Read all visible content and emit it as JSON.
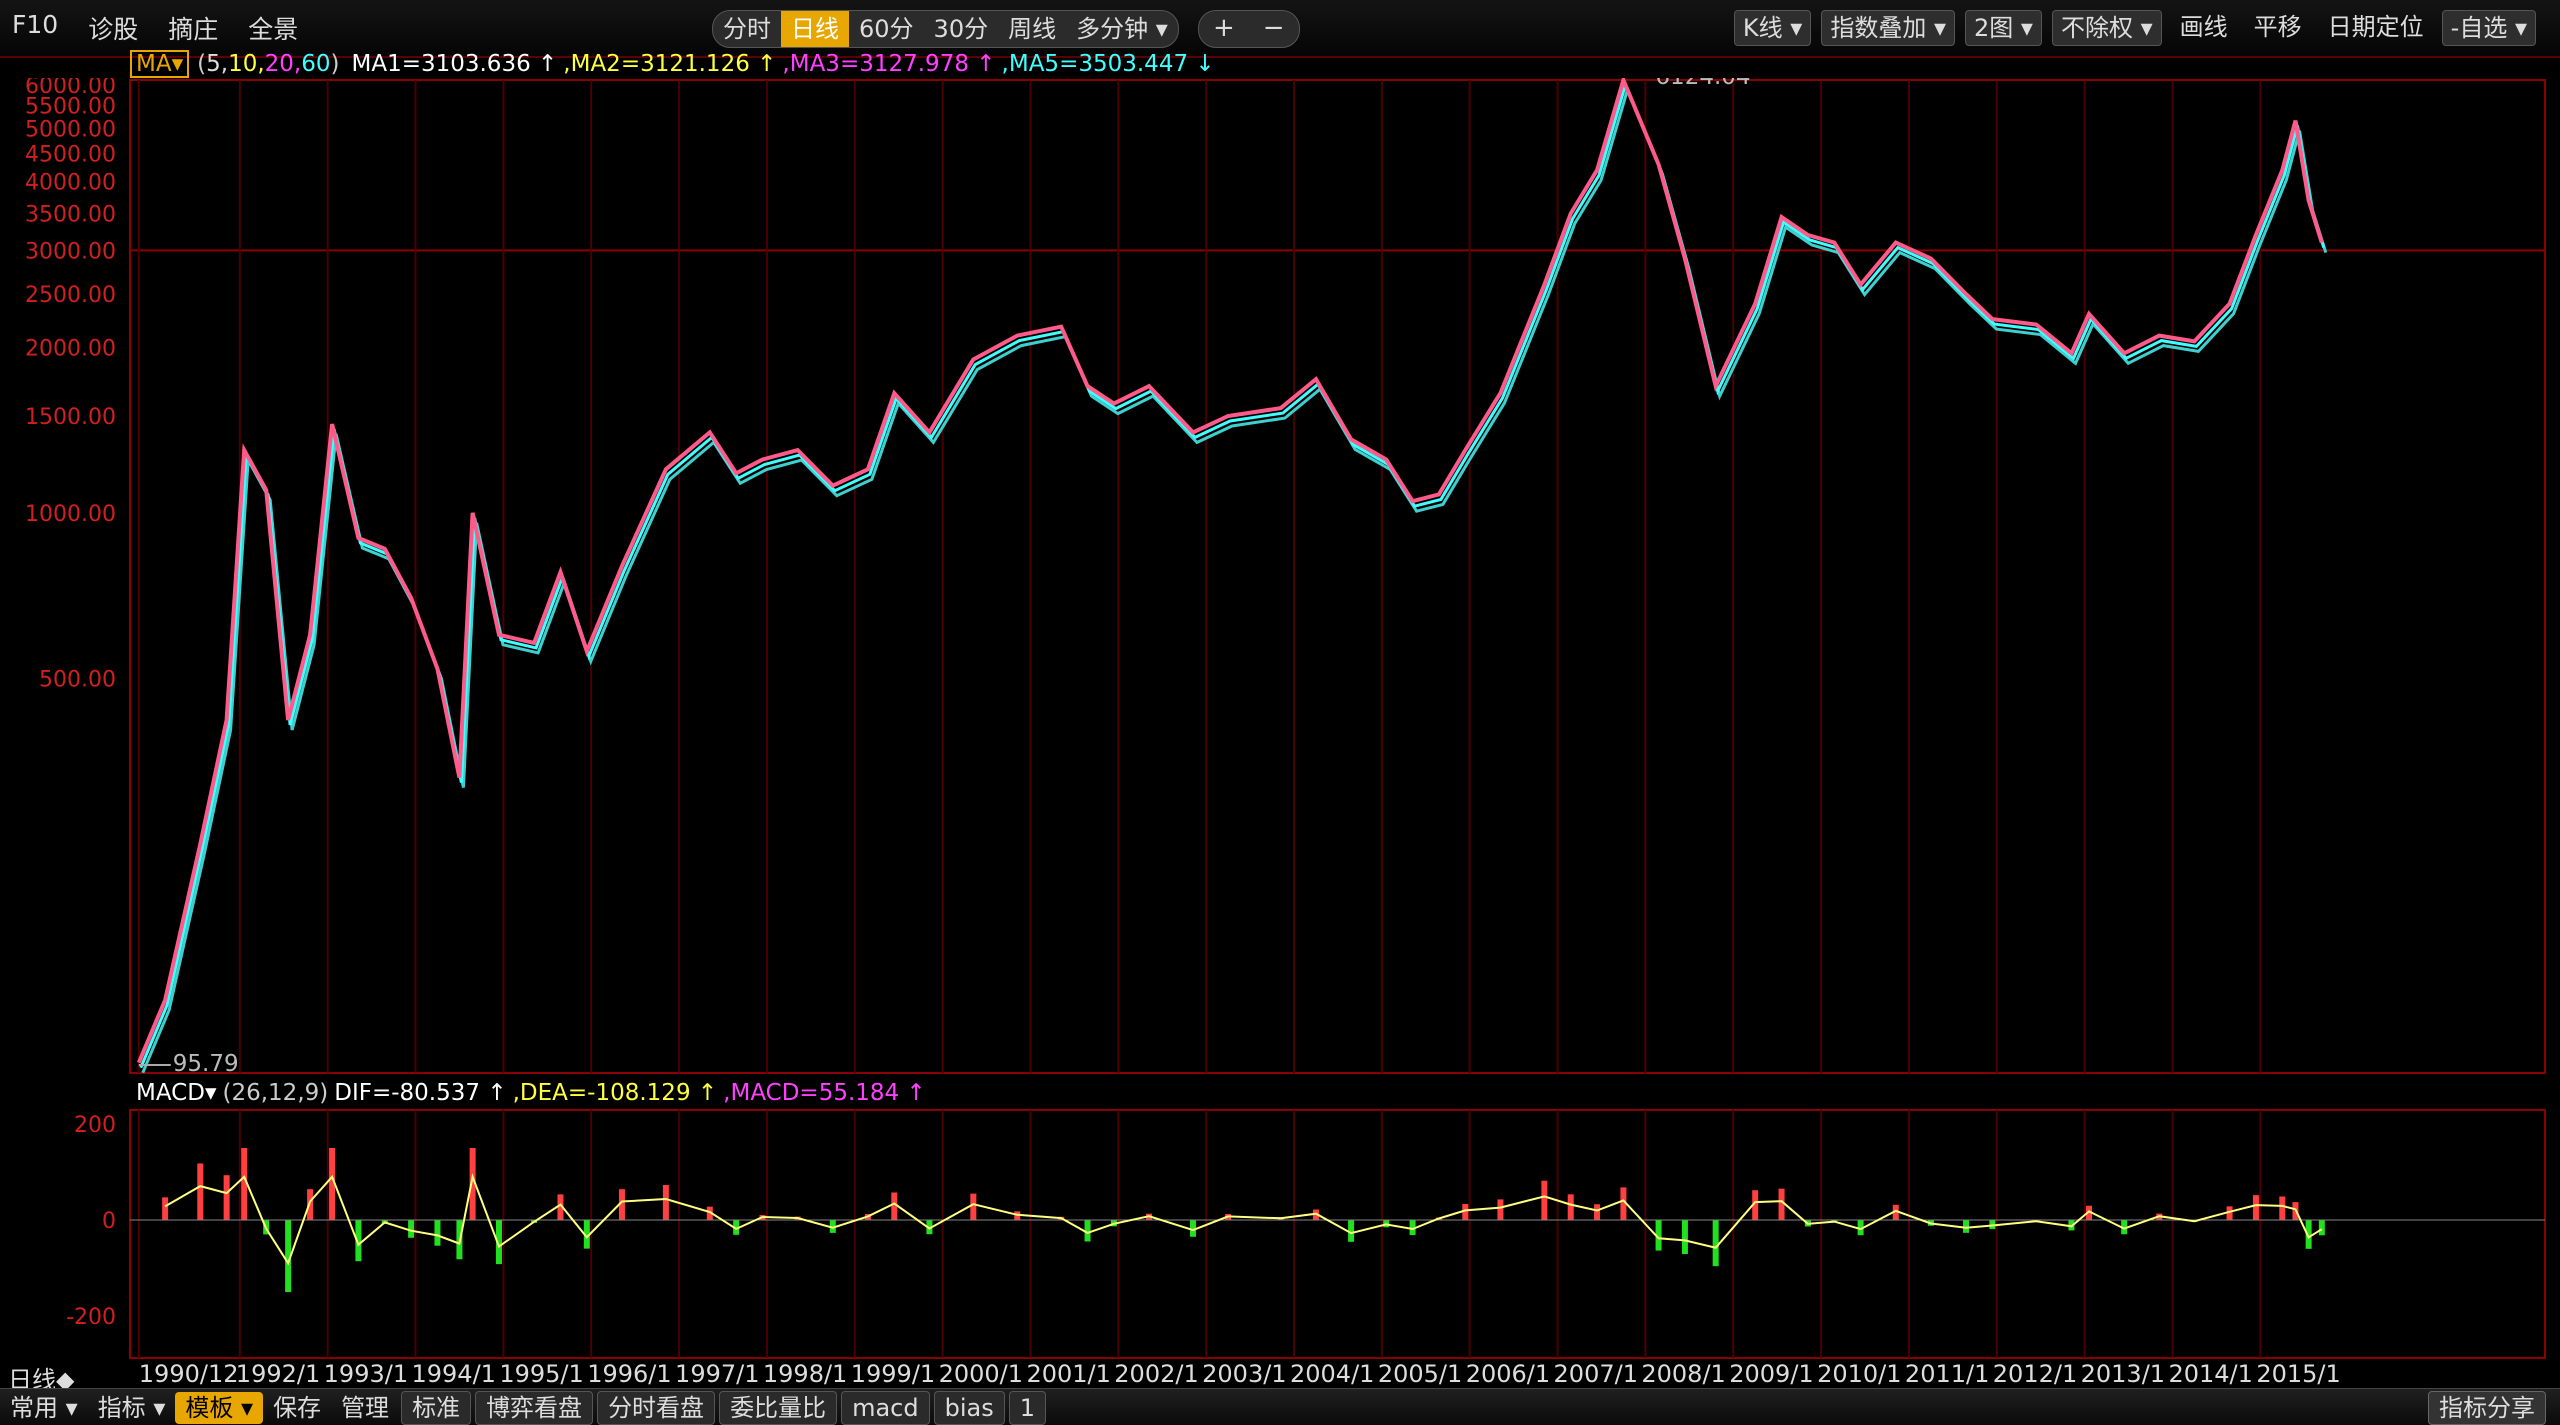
{
  "toolbar": {
    "left_items": [
      "F10",
      "诊股",
      "摘庄",
      "全景"
    ],
    "periods": [
      "分时",
      "日线",
      "60分",
      "30分",
      "周线",
      "多分钟 ▾"
    ],
    "active_period": "日线",
    "zoom_in": "+",
    "zoom_out": "−",
    "right_items": [
      "K线 ▾",
      "指数叠加 ▾",
      "2图 ▾",
      "不除权 ▾",
      "画线",
      "平移",
      "日期定位",
      "-自选 ▾"
    ]
  },
  "ma_legend": {
    "button": "MA▾",
    "params_open": "(",
    "p5": "5,",
    "p10": "10,",
    "p20": "20,",
    "p60": "60",
    "params_close": ")",
    "ma1": "MA1=3103.636 ↑",
    "ma2": ",MA2=3121.126 ↑",
    "ma3": ",MA3=3127.978 ↑",
    "ma5": ",MA5=3503.447 ↓"
  },
  "main_chart": {
    "y_ticks": [
      "6000.00",
      "5500.00",
      "5000.00",
      "4500.00",
      "4000.00",
      "3500.00",
      "3000.00",
      "2500.00",
      "2000.00",
      "1500.00",
      "1000.00",
      "500.00"
    ],
    "max_label": "6124.04",
    "min_label": "95.79"
  },
  "macd_legend": {
    "name": "MACD▾",
    "params": "(26,12,9)",
    "dif": "DIF=-80.537 ↑",
    "dea": ",DEA=-108.129 ↑",
    "macd": ",MACD=55.184 ↑"
  },
  "macd_chart": {
    "y_ticks": [
      "200",
      "0",
      "-200"
    ]
  },
  "x_axis": {
    "prefix": "日线◆",
    "labels": [
      "1990/12",
      "1992/1",
      "1993/1",
      "1994/1",
      "1995/1",
      "1996/1",
      "1997/1",
      "1998/1",
      "1999/1",
      "2000/1",
      "2001/1",
      "2002/1",
      "2003/1",
      "2004/1",
      "2005/1",
      "2006/1",
      "2007/1",
      "2008/1",
      "2009/1",
      "2010/1",
      "2011/1",
      "2012/1",
      "2013/1",
      "2014/1",
      "2015/1"
    ]
  },
  "bottom_bar": {
    "items": [
      "常用 ▾",
      "指标 ▾",
      "模板 ▾",
      "保存",
      "管理"
    ],
    "active": "模板 ▾",
    "tabs": [
      "标准",
      "博弈看盘",
      "分时看盘",
      "委比量比",
      "macd",
      "bias",
      "1"
    ],
    "share": "指标分享"
  },
  "chart_data": {
    "type": "line",
    "title": "",
    "ylabel": "",
    "xlabel": "",
    "log_scale": true,
    "ylim": [
      95.79,
      6124.04
    ],
    "x": [
      1990.9,
      1991.2,
      1991.6,
      1991.9,
      1992.1,
      1992.35,
      1992.6,
      1992.85,
      1993.1,
      1993.4,
      1993.7,
      1994.0,
      1994.3,
      1994.55,
      1994.7,
      1995.0,
      1995.4,
      1995.7,
      1996.0,
      1996.4,
      1996.9,
      1997.4,
      1997.7,
      1998.0,
      1998.4,
      1998.8,
      1999.2,
      1999.5,
      1999.9,
      2000.4,
      2000.9,
      2001.4,
      2001.7,
      2002.0,
      2002.4,
      2002.9,
      2003.3,
      2003.9,
      2004.3,
      2004.7,
      2005.1,
      2005.4,
      2005.7,
      2006.0,
      2006.4,
      2006.9,
      2007.2,
      2007.5,
      2007.8,
      2008.2,
      2008.5,
      2008.85,
      2009.3,
      2009.6,
      2009.9,
      2010.2,
      2010.5,
      2010.9,
      2011.3,
      2011.7,
      2012.0,
      2012.5,
      2012.9,
      2013.1,
      2013.5,
      2013.9,
      2014.3,
      2014.7,
      2015.0,
      2015.3,
      2015.45,
      2015.6,
      2015.75
    ],
    "series": [
      {
        "values": [
          100,
          130,
          250,
          420,
          1300,
          1100,
          420,
          600,
          1450,
          900,
          860,
          700,
          520,
          330,
          1000,
          600,
          580,
          780,
          560,
          800,
          1200,
          1400,
          1180,
          1250,
          1300,
          1120,
          1200,
          1650,
          1400,
          1900,
          2100,
          2180,
          1700,
          1580,
          1700,
          1400,
          1500,
          1550,
          1750,
          1360,
          1250,
          1050,
          1080,
          1300,
          1650,
          2600,
          3500,
          4200,
          6124,
          4300,
          2900,
          1700,
          2400,
          3450,
          3200,
          3100,
          2600,
          3100,
          2900,
          2500,
          2250,
          2200,
          1950,
          2300,
          1950,
          2100,
          2050,
          2400,
          3200,
          4200,
          5166,
          3700,
          3100
        ]
      }
    ]
  }
}
